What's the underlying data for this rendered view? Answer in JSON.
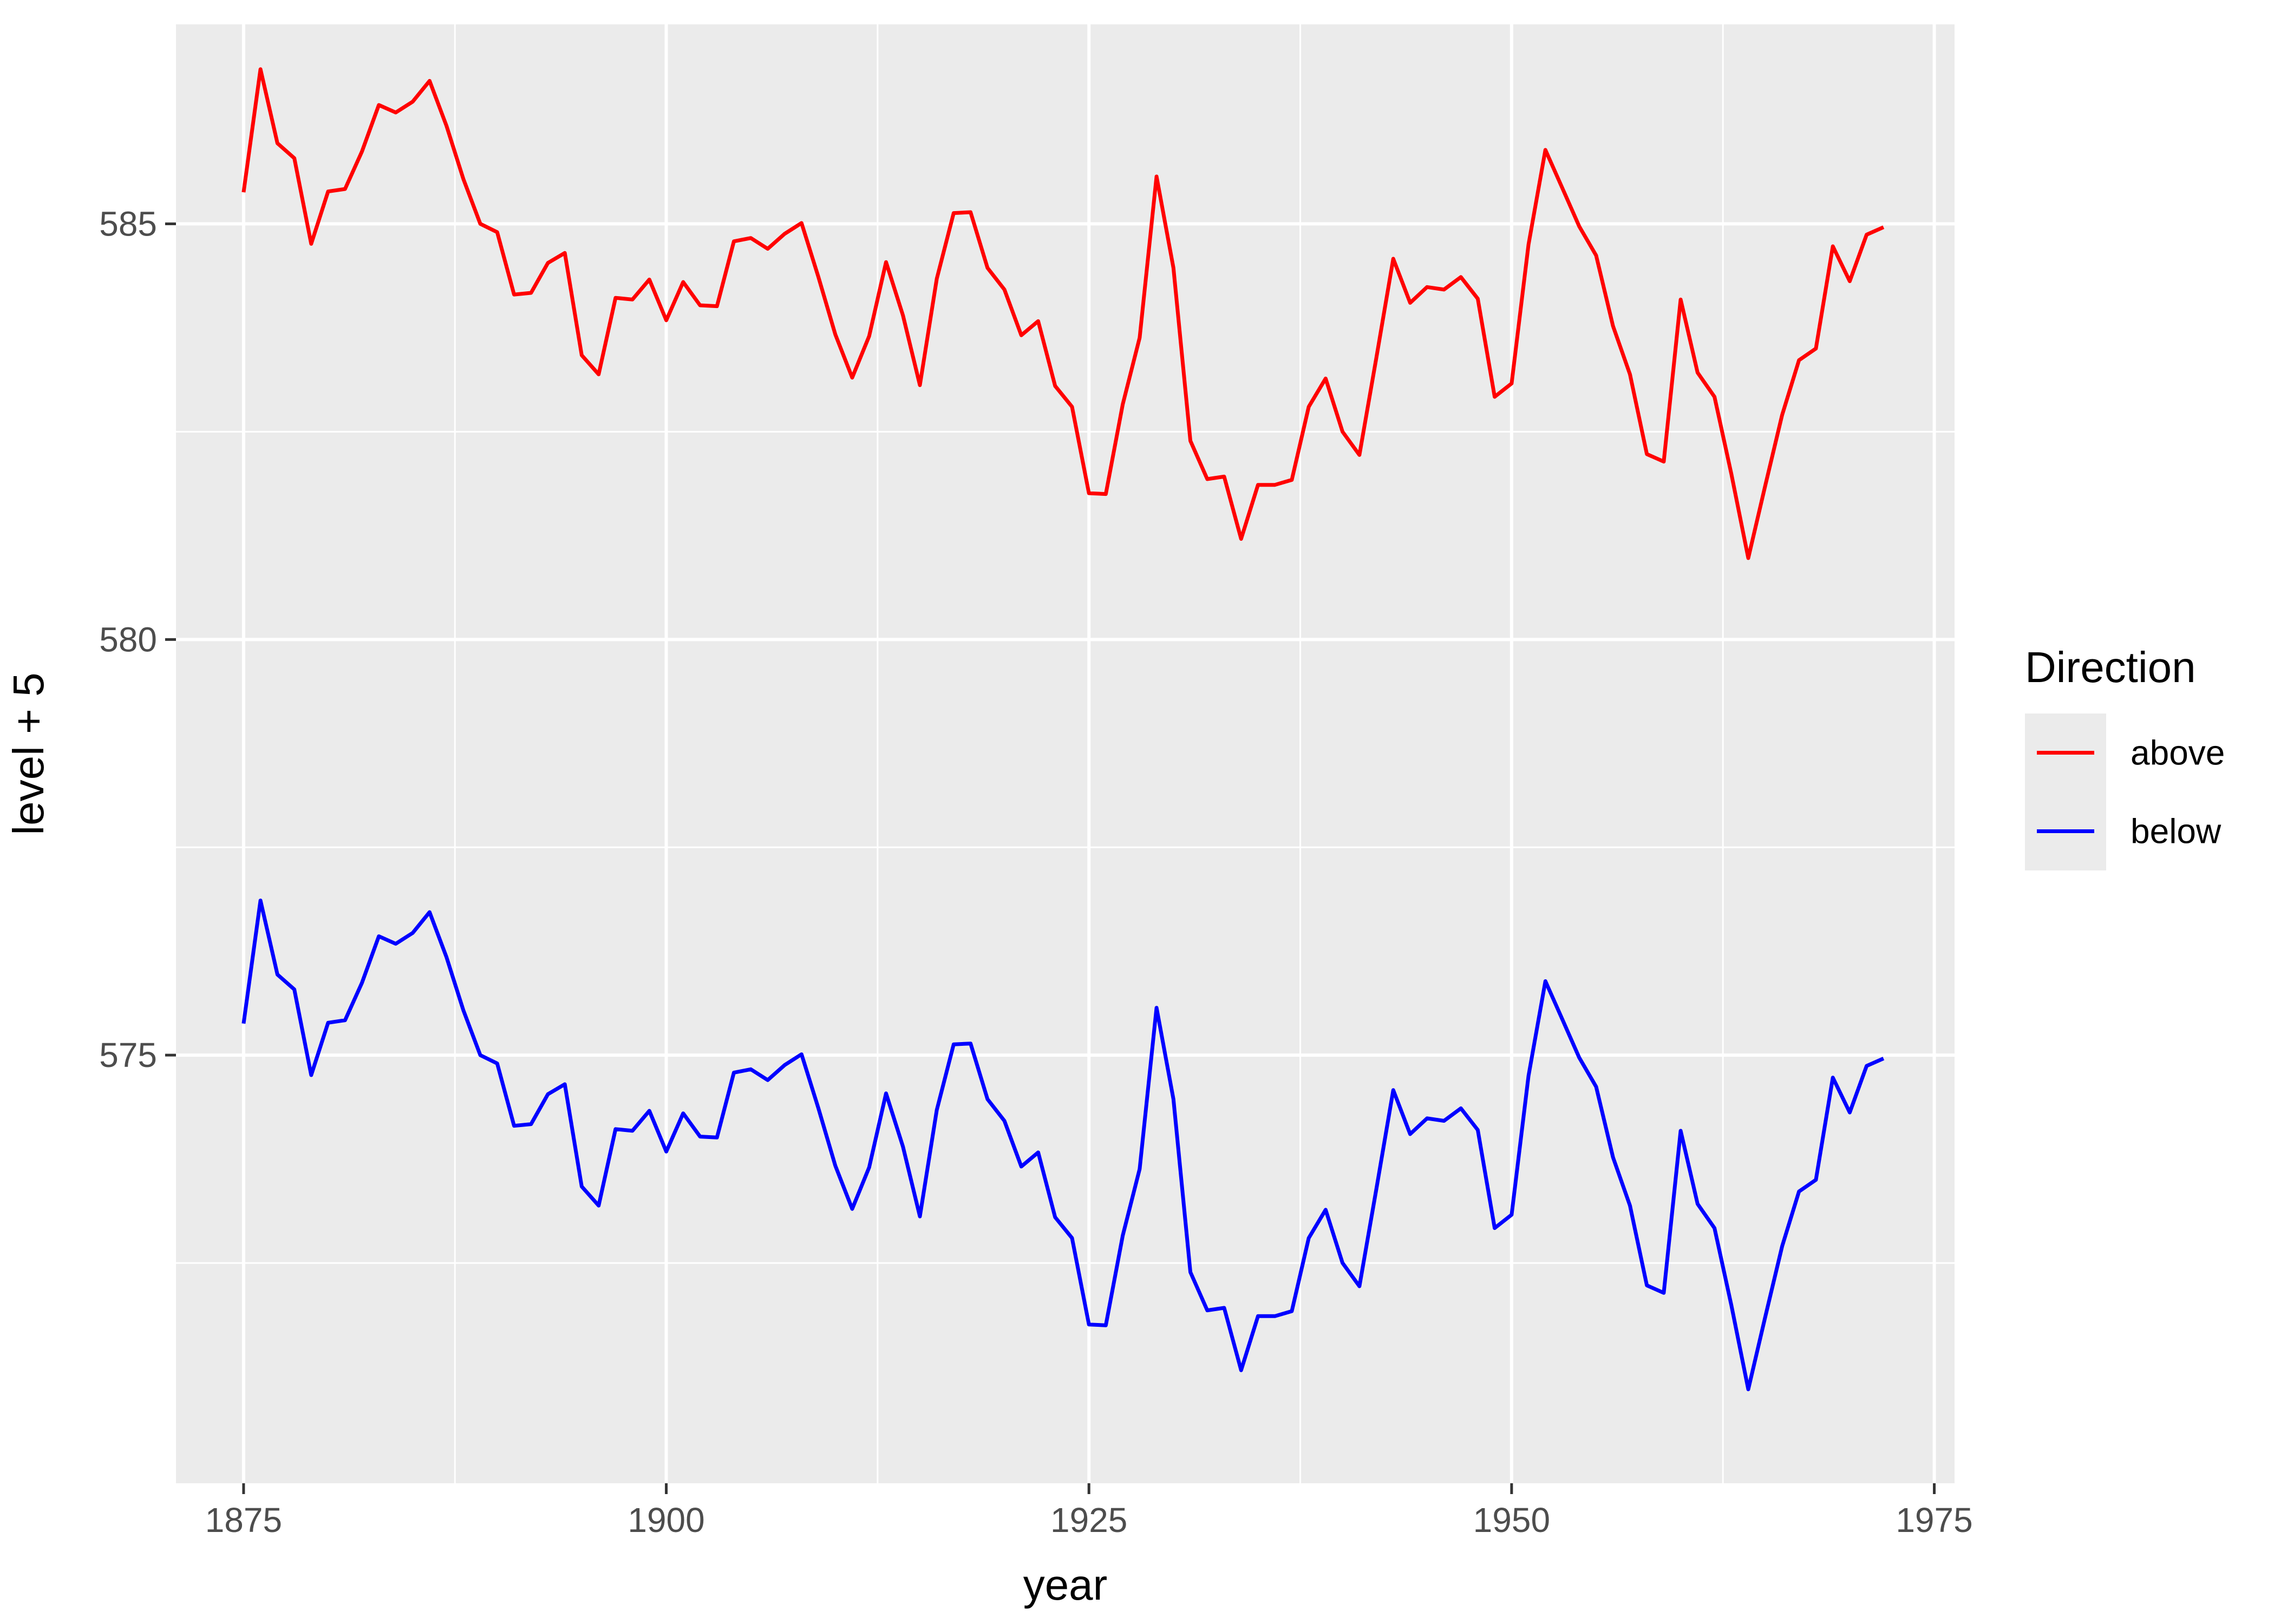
{
  "chart_data": {
    "type": "line",
    "xlabel": "year",
    "ylabel": "level + 5",
    "xlim": [
      1871,
      1976.2
    ],
    "ylim": [
      569.85,
      587.4
    ],
    "x_ticks": [
      1875,
      1900,
      1925,
      1950,
      1975
    ],
    "y_ticks": [
      575,
      580,
      585
    ],
    "grid": true,
    "legend_position": "right",
    "legend_title": "Direction",
    "x": [
      1875,
      1876,
      1877,
      1878,
      1879,
      1880,
      1881,
      1882,
      1883,
      1884,
      1885,
      1886,
      1887,
      1888,
      1889,
      1890,
      1891,
      1892,
      1893,
      1894,
      1895,
      1896,
      1897,
      1898,
      1899,
      1900,
      1901,
      1902,
      1903,
      1904,
      1905,
      1906,
      1907,
      1908,
      1909,
      1910,
      1911,
      1912,
      1913,
      1914,
      1915,
      1916,
      1917,
      1918,
      1919,
      1920,
      1921,
      1922,
      1923,
      1924,
      1925,
      1926,
      1927,
      1928,
      1929,
      1930,
      1931,
      1932,
      1933,
      1934,
      1935,
      1936,
      1937,
      1938,
      1939,
      1940,
      1941,
      1942,
      1943,
      1944,
      1945,
      1946,
      1947,
      1948,
      1949,
      1950,
      1951,
      1952,
      1953,
      1954,
      1955,
      1956,
      1957,
      1958,
      1959,
      1960,
      1961,
      1962,
      1963,
      1964,
      1965,
      1966,
      1967,
      1968,
      1969,
      1970,
      1971,
      1972
    ],
    "series": [
      {
        "name": "above",
        "color": "#ff0000",
        "values": [
          585.38,
          586.86,
          585.97,
          585.79,
          584.76,
          585.39,
          585.42,
          585.87,
          586.43,
          586.34,
          586.47,
          586.72,
          586.18,
          585.54,
          585.0,
          584.9,
          584.15,
          584.17,
          584.53,
          584.65,
          583.42,
          583.19,
          584.11,
          584.09,
          584.33,
          583.84,
          584.3,
          584.02,
          584.01,
          584.79,
          584.83,
          584.7,
          584.88,
          585.01,
          584.36,
          583.67,
          583.15,
          583.65,
          584.54,
          583.9,
          583.06,
          584.34,
          585.13,
          585.14,
          584.47,
          584.21,
          583.66,
          583.83,
          583.05,
          582.8,
          581.76,
          581.75,
          582.83,
          583.63,
          585.57,
          584.47,
          582.39,
          581.93,
          581.96,
          581.21,
          581.86,
          581.86,
          581.92,
          582.8,
          583.14,
          582.5,
          582.22,
          583.39,
          584.58,
          584.05,
          584.24,
          584.21,
          584.36,
          584.1,
          582.92,
          583.08,
          584.75,
          585.89,
          585.43,
          584.97,
          584.62,
          583.77,
          583.19,
          582.23,
          582.14,
          584.09,
          583.21,
          582.92,
          581.99,
          580.98,
          581.85,
          582.7,
          583.36,
          583.5,
          584.73,
          584.31,
          584.87,
          584.96
        ]
      },
      {
        "name": "below",
        "color": "#0000ff",
        "values": [
          575.38,
          576.86,
          575.97,
          575.79,
          574.76,
          575.39,
          575.42,
          575.87,
          576.43,
          576.34,
          576.47,
          576.72,
          576.18,
          575.54,
          575.0,
          574.9,
          574.15,
          574.17,
          574.53,
          574.65,
          573.42,
          573.19,
          574.11,
          574.09,
          574.33,
          573.84,
          574.3,
          574.02,
          574.01,
          574.79,
          574.83,
          574.7,
          574.88,
          575.01,
          574.36,
          573.67,
          573.15,
          573.65,
          574.54,
          573.9,
          573.06,
          574.34,
          575.13,
          575.14,
          574.47,
          574.21,
          573.66,
          573.83,
          573.05,
          572.8,
          571.76,
          571.75,
          572.83,
          573.63,
          575.57,
          574.47,
          572.39,
          571.93,
          571.96,
          571.21,
          571.86,
          571.86,
          571.92,
          572.8,
          573.14,
          572.5,
          572.22,
          573.39,
          574.58,
          574.05,
          574.24,
          574.21,
          574.36,
          574.1,
          572.92,
          573.08,
          574.75,
          575.89,
          575.43,
          574.97,
          574.62,
          573.77,
          573.19,
          572.23,
          572.14,
          574.09,
          573.21,
          572.92,
          571.99,
          570.98,
          571.85,
          572.7,
          573.36,
          573.5,
          574.73,
          574.31,
          574.87,
          574.96
        ]
      }
    ]
  }
}
